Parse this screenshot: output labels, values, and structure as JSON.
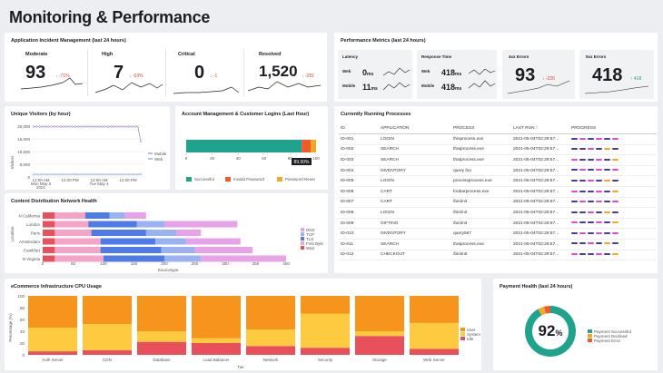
{
  "page_title": "Monitoring & Performance",
  "incident": {
    "title": "Application Incident Management (last 24 hours)",
    "kpis": [
      {
        "name": "Moderate",
        "value": "93",
        "delta": "↓ -71%"
      },
      {
        "name": "High",
        "value": "7",
        "delta": "↓ -53%"
      },
      {
        "name": "Critical",
        "value": "0",
        "delta": "↓ -1"
      },
      {
        "name": "Resolved",
        "value": "1,520",
        "delta": "↓ -281"
      }
    ]
  },
  "perf": {
    "title": "Performance Metrics (last 24 hours)",
    "latency": {
      "title": "Latency",
      "web_label": "Web",
      "web_value": "0",
      "web_unit": "ms",
      "mobile_label": "Mobile",
      "mobile_value": "11",
      "mobile_unit": "ms"
    },
    "response": {
      "title": "Response Time",
      "web_label": "Web",
      "web_value": "418",
      "web_unit": "ms",
      "mobile_label": "Mobile",
      "mobile_value": "418",
      "mobile_unit": "ms"
    },
    "errors4": {
      "title": "4xx Errors",
      "value": "93",
      "delta": "↓ -226"
    },
    "errors5": {
      "title": "5xx Errors",
      "value": "418",
      "delta": "↑ 418"
    }
  },
  "visitors": {
    "title": "Unique Visitors (by hour)",
    "ylabel": "Visitors",
    "y_ticks": [
      "20,000",
      "15,000",
      "10,000",
      "5,000",
      "0"
    ],
    "x_ticks": [
      "12:00 AM\nMon May 3\n2021",
      "12:00 PM",
      "12:00 AM\nTue May 4",
      "12:00 PM"
    ],
    "x_tick_1": "12:00 AM",
    "x_tick_1b": "Mon May 3",
    "x_tick_1c": "2021",
    "x_tick_2": "12:00 PM",
    "x_tick_3": "12:00 AM",
    "x_tick_3b": "Tue May 4",
    "x_tick_4": "12:00 PM",
    "legend": [
      "Mobile",
      "Web"
    ]
  },
  "logins": {
    "title": "Account Management & Customer Logins (Last Hour)",
    "tooltip": "89.00%",
    "ticks": [
      "0",
      "20",
      "40",
      "60",
      "80",
      "100"
    ],
    "legend": [
      "Successful",
      "Invalid Password",
      "Password Reset"
    ]
  },
  "cdn": {
    "title": "Content Distribution Network Health",
    "ylabel": "Location",
    "xlabel": "Sourcetype",
    "locations": [
      "N California",
      "London",
      "Paris",
      "Amsterdam",
      "Frankfurt",
      "N Virginia"
    ],
    "x_ticks": [
      "0",
      "50",
      "100",
      "150",
      "200",
      "250",
      "300",
      "350",
      "400"
    ],
    "legend": [
      "DNS",
      "TCP",
      "TLS",
      "First Byte",
      "Wait"
    ]
  },
  "processes": {
    "title": "Currently Running Processes",
    "columns": [
      "ID",
      "APPLICATION",
      "PROCESS",
      "LAST RUN",
      "PROGRESS"
    ],
    "sort_arrow": "↑",
    "rows": [
      [
        "ID-001",
        "LOGIN",
        "thisprocess.exe",
        "2021-05-04T02:29:57..."
      ],
      [
        "ID-002",
        "SEARCH",
        "thatprocess.exe",
        "2021-05-04T02:29:57..."
      ],
      [
        "ID-003",
        "SEARCH",
        "thatprocess.exe",
        "2021-05-04T02:29:57..."
      ],
      [
        "ID-004",
        "INVENTORY",
        "query foo",
        "2021-05-04T02:29:57..."
      ],
      [
        "ID-005",
        "LOGIN",
        "processprocess.exe",
        "2021-05-04T02:29:57..."
      ],
      [
        "ID-006",
        "CART",
        "foobarprocess.exe",
        "2021-05-04T02:29:57..."
      ],
      [
        "ID-007",
        "CART",
        "/bin/init",
        "2021-05-04T02:29:57..."
      ],
      [
        "ID-008",
        "LOGIN",
        "/bin/init",
        "2021-05-04T02:29:57..."
      ],
      [
        "ID-009",
        "GIFTING",
        "/bin/init",
        "2021-05-04T02:29:57..."
      ],
      [
        "ID-010",
        "INVENTORY",
        "query567",
        "2021-05-04T02:29:57..."
      ],
      [
        "ID-011",
        "SEARCH",
        "thatprocess.exe",
        "2021-05-04T02:29:57..."
      ],
      [
        "ID-012",
        "CHECKOUT",
        "/bin/init",
        "2021-05-04T02:29:57..."
      ]
    ]
  },
  "cpu": {
    "title": "eCommerce Infrastructure CPU Usage",
    "ylabel": "Percentage (%)",
    "xlabel": "Tier",
    "y_ticks": [
      "100",
      "80",
      "60",
      "40",
      "20",
      "0"
    ],
    "legend": [
      "User",
      "System",
      "Idle"
    ]
  },
  "payment": {
    "title": "Payment Health (last 24 hours)",
    "value": "92",
    "unit": "%",
    "legend": [
      "Payment Successful",
      "Payment Declined",
      "Payment Error"
    ]
  },
  "chart_data": [
    {
      "type": "line",
      "title": "Unique Visitors (by hour)",
      "ylabel": "Visitors",
      "ylim": [
        0,
        20000
      ],
      "series": [
        {
          "name": "Mobile",
          "values": [
            19800,
            19800,
            19800,
            19800,
            19800,
            19800,
            19800,
            19800,
            19800,
            19800,
            19800,
            19800,
            19800,
            19800,
            19800,
            19800,
            19800,
            19800,
            19800,
            19800,
            19800,
            19800,
            19800,
            19800,
            19800,
            19800,
            19800,
            19800,
            19800,
            19800,
            19800,
            19800,
            19800,
            19800,
            19800,
            19800,
            14000
          ]
        },
        {
          "name": "Web",
          "values": [
            1000,
            1000,
            1000,
            1000,
            1000,
            1000,
            1000,
            1000,
            1000,
            1000,
            1000,
            1000,
            1000,
            1000,
            1000,
            1000,
            1000,
            1000,
            1000,
            1000,
            1000,
            1000,
            1000,
            1000,
            1000,
            1000,
            1000,
            1000,
            1000,
            1000,
            1000,
            1000,
            1000,
            1000,
            1000,
            1000,
            1000
          ]
        }
      ]
    },
    {
      "type": "bar",
      "title": "Account Management & Customer Logins (Last Hour)",
      "orientation": "horizontal",
      "stacked": true,
      "xlim": [
        0,
        100
      ],
      "categories": [
        ""
      ],
      "series": [
        {
          "name": "Successful",
          "values": [
            89
          ]
        },
        {
          "name": "Invalid Password",
          "values": [
            7
          ]
        },
        {
          "name": "Password Reset",
          "values": [
            4
          ]
        }
      ],
      "colors": [
        "#1fa38c",
        "#f15a29",
        "#f5a623"
      ]
    },
    {
      "type": "bar",
      "title": "Content Distribution Network Health",
      "orientation": "horizontal",
      "stacked": true,
      "xlabel": "Sourcetype",
      "ylabel": "Location",
      "xlim": [
        0,
        400
      ],
      "categories": [
        "N California",
        "London",
        "Paris",
        "Amsterdam",
        "Frankfurt",
        "N Virginia"
      ],
      "series": [
        {
          "name": "Wait",
          "values": [
            20,
            20,
            20,
            20,
            20,
            20
          ]
        },
        {
          "name": "First Byte",
          "values": [
            50,
            55,
            60,
            75,
            75,
            80
          ]
        },
        {
          "name": "TLS",
          "values": [
            40,
            80,
            90,
            90,
            100,
            100
          ]
        },
        {
          "name": "TCP",
          "values": [
            25,
            45,
            50,
            50,
            55,
            60
          ]
        },
        {
          "name": "DNS",
          "values": [
            35,
            120,
            40,
            90,
            95,
            140
          ]
        }
      ],
      "colors": [
        "#e8505b",
        "#f5a3c7",
        "#4f7be8",
        "#9ab1f2",
        "#e8a3e8"
      ]
    },
    {
      "type": "bar",
      "title": "eCommerce Infrastructure CPU Usage",
      "stacked": true,
      "xlabel": "Tier",
      "ylabel": "Percentage (%)",
      "ylim": [
        0,
        100
      ],
      "categories": [
        "Auth Server",
        "CDN",
        "Database",
        "Load Balancer",
        "Network",
        "Security",
        "Storage",
        "Web Server"
      ],
      "series": [
        {
          "name": "Idle",
          "values": [
            6,
            8,
            22,
            20,
            15,
            12,
            32,
            10
          ]
        },
        {
          "name": "System",
          "values": [
            40,
            44,
            18,
            8,
            28,
            58,
            8,
            44
          ]
        },
        {
          "name": "User",
          "values": [
            54,
            48,
            60,
            72,
            57,
            30,
            60,
            46
          ]
        }
      ],
      "colors": [
        "#e8505b",
        "#fdca40",
        "#f7941d"
      ]
    },
    {
      "type": "pie",
      "title": "Payment Health (last 24 hours)",
      "categories": [
        "Payment Successful",
        "Payment Declined",
        "Payment Error"
      ],
      "values": [
        92,
        4,
        4
      ],
      "colors": [
        "#1fa38c",
        "#f5a623",
        "#f15a29"
      ]
    }
  ]
}
